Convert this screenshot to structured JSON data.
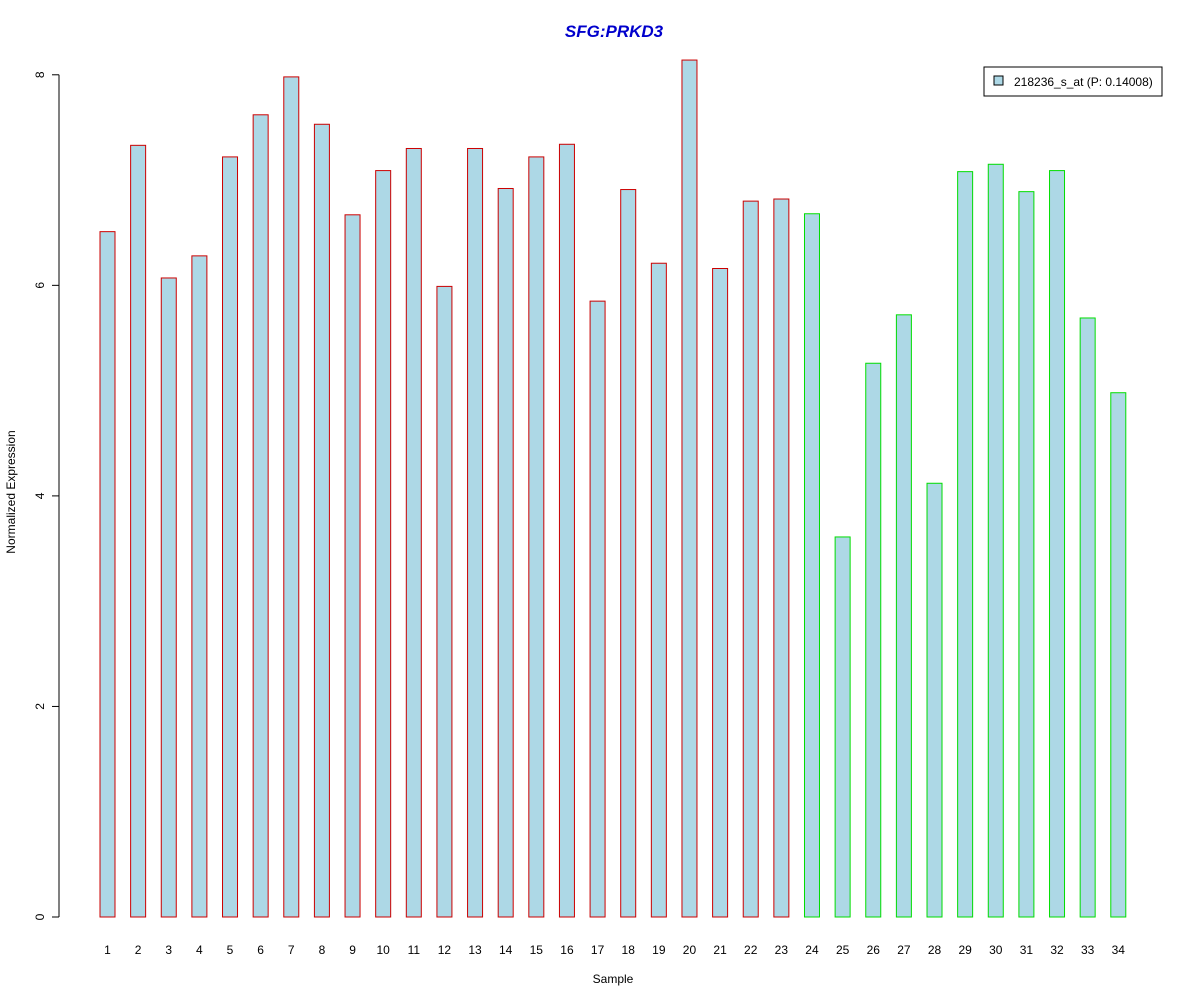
{
  "chart_data": {
    "type": "bar",
    "title": "SFG:PRKD3",
    "title_color": "#0000cc",
    "xlabel": "Sample",
    "ylabel": "Normalized Expression",
    "ylim": [
      0,
      8.15
    ],
    "yticks": [
      0,
      2,
      4,
      6,
      8
    ],
    "grid": false,
    "legend_position": "top-right",
    "bar_fill": "#add8e6",
    "group_colors": {
      "group1": "#cc0000",
      "group2": "#00dd00"
    },
    "categories": [
      "1",
      "2",
      "3",
      "4",
      "5",
      "6",
      "7",
      "8",
      "9",
      "10",
      "11",
      "12",
      "13",
      "14",
      "15",
      "16",
      "17",
      "18",
      "19",
      "20",
      "21",
      "22",
      "23",
      "24",
      "25",
      "26",
      "27",
      "28",
      "29",
      "30",
      "31",
      "32",
      "33",
      "34"
    ],
    "series": [
      {
        "name": "218236_s_at (P: 0.14008)",
        "values": [
          6.51,
          7.33,
          6.07,
          6.28,
          7.22,
          7.62,
          7.98,
          7.53,
          6.67,
          7.09,
          7.3,
          5.99,
          7.3,
          6.92,
          7.22,
          7.34,
          5.85,
          6.91,
          6.21,
          8.14,
          6.16,
          6.8,
          6.82,
          6.68,
          3.61,
          5.26,
          5.72,
          4.12,
          7.08,
          7.15,
          6.89,
          7.09,
          5.69,
          4.98
        ],
        "groups": [
          "group1",
          "group1",
          "group1",
          "group1",
          "group1",
          "group1",
          "group1",
          "group1",
          "group1",
          "group1",
          "group1",
          "group1",
          "group1",
          "group1",
          "group1",
          "group1",
          "group1",
          "group1",
          "group1",
          "group1",
          "group1",
          "group1",
          "group1",
          "group2",
          "group2",
          "group2",
          "group2",
          "group2",
          "group2",
          "group2",
          "group2",
          "group2",
          "group2",
          "group2"
        ]
      }
    ]
  }
}
